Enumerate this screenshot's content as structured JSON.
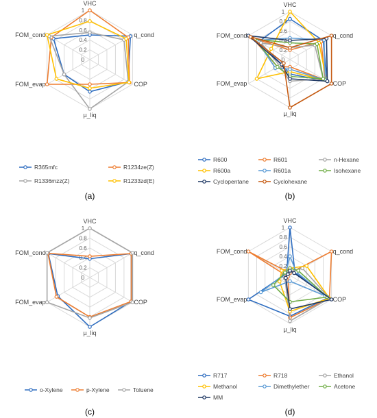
{
  "chart_data": [
    {
      "type": "radar",
      "panel_label": "(a)",
      "axes": [
        "VHC",
        "q_cond",
        "COP",
        "µ_liq",
        "FOM_evap",
        "FOM_cond"
      ],
      "tick_labels": [
        "0",
        "0.2",
        "0.4",
        "0.6",
        "0.8",
        "1"
      ],
      "range": [
        0,
        1
      ],
      "legend_position": "bottom",
      "series": [
        {
          "name": "R365mfc",
          "color": "#2e6dc0",
          "values": [
            0.5,
            0.95,
            0.9,
            0.65,
            0.6,
            0.85
          ]
        },
        {
          "name": "R1234ze(Z)",
          "color": "#ed7d31",
          "values": [
            1.0,
            0.9,
            0.93,
            0.5,
            1.0,
            0.9
          ]
        },
        {
          "name": "R1336mzz(Z)",
          "color": "#a5a5a5",
          "values": [
            0.55,
            0.8,
            0.9,
            1.0,
            0.6,
            0.95
          ]
        },
        {
          "name": "R1233zd(E)",
          "color": "#ffc000",
          "values": [
            0.78,
            0.85,
            0.92,
            0.58,
            0.78,
            1.0
          ]
        }
      ]
    },
    {
      "type": "radar",
      "panel_label": "(b)",
      "axes": [
        "VHC",
        "q_cond",
        "COP",
        "µ_liq",
        "FOM_evap",
        "FOM_cond"
      ],
      "tick_labels": [
        "0",
        "0.2",
        "0.4",
        "0.6",
        "0.8",
        "1"
      ],
      "range": [
        0,
        1
      ],
      "legend_position": "bottom",
      "series": [
        {
          "name": "R600",
          "color": "#2e6dc0",
          "values": [
            0.85,
            0.8,
            0.9,
            0.3,
            0.2,
            0.75
          ]
        },
        {
          "name": "R601",
          "color": "#ed7d31",
          "values": [
            0.2,
            0.75,
            0.85,
            0.15,
            0.3,
            0.9
          ]
        },
        {
          "name": "n-Hexane",
          "color": "#a5a5a5",
          "values": [
            0.25,
            0.6,
            0.8,
            0.45,
            0.25,
            0.7
          ]
        },
        {
          "name": "R600a",
          "color": "#ffc000",
          "values": [
            1.0,
            0.7,
            0.88,
            0.25,
            0.8,
            0.45
          ]
        },
        {
          "name": "R601a",
          "color": "#5b9bd5",
          "values": [
            0.45,
            0.82,
            0.85,
            0.2,
            0.35,
            0.8
          ]
        },
        {
          "name": "Isohexane",
          "color": "#70ad47",
          "values": [
            0.35,
            0.65,
            0.8,
            0.35,
            0.3,
            0.85
          ]
        },
        {
          "name": "Cyclopentane",
          "color": "#1f3864",
          "values": [
            0.4,
            0.88,
            0.9,
            0.4,
            0.2,
            1.0
          ]
        },
        {
          "name": "Cyclohexane",
          "color": "#c55a11",
          "values": [
            0.25,
            1.0,
            1.0,
            1.0,
            0.15,
            0.95
          ]
        }
      ]
    },
    {
      "type": "radar",
      "panel_label": "(c)",
      "axes": [
        "VHC",
        "q_cond",
        "COP",
        "µ_liq",
        "FOM_evap",
        "FOM_cond"
      ],
      "tick_labels": [
        "0",
        "0.2",
        "0.4",
        "0.6",
        "0.8",
        "1"
      ],
      "range": [
        0,
        1
      ],
      "legend_position": "bottom",
      "series": [
        {
          "name": "o-Xylene",
          "color": "#2e6dc0",
          "values": [
            0.38,
            0.97,
            0.97,
            1.0,
            0.75,
            0.97
          ]
        },
        {
          "name": "p-Xylene",
          "color": "#ed7d31",
          "values": [
            0.43,
            0.97,
            0.97,
            0.8,
            0.78,
            0.98
          ]
        },
        {
          "name": "Toluene",
          "color": "#a5a5a5",
          "values": [
            1.0,
            1.0,
            1.0,
            0.82,
            1.0,
            1.0
          ]
        }
      ]
    },
    {
      "type": "radar",
      "panel_label": "(d)",
      "axes": [
        "VHC",
        "q_cond",
        "COP",
        "µ_liq",
        "FOM_evap",
        "FOM_cond"
      ],
      "tick_labels": [
        "0",
        "0.2",
        "0.4",
        "0.6",
        "0.8",
        "1"
      ],
      "range": [
        0,
        1
      ],
      "legend_position": "bottom",
      "series": [
        {
          "name": "R717",
          "color": "#2e6dc0",
          "values": [
            1.0,
            0.12,
            0.92,
            0.85,
            1.0,
            0.08
          ]
        },
        {
          "name": "R718",
          "color": "#ed7d31",
          "values": [
            0.05,
            1.0,
            0.95,
            0.88,
            0.05,
            1.0
          ]
        },
        {
          "name": "Ethanol",
          "color": "#a5a5a5",
          "values": [
            0.08,
            0.3,
            0.95,
            0.95,
            0.12,
            0.15
          ]
        },
        {
          "name": "Methanol",
          "color": "#ffc000",
          "values": [
            0.15,
            0.4,
            0.95,
            0.75,
            0.25,
            0.2
          ]
        },
        {
          "name": "Dimethylether",
          "color": "#5b9bd5",
          "values": [
            0.4,
            0.15,
            0.85,
            0.12,
            0.7,
            0.1
          ]
        },
        {
          "name": "Acetone",
          "color": "#70ad47",
          "values": [
            0.15,
            0.2,
            0.9,
            0.55,
            0.4,
            0.12
          ]
        },
        {
          "name": "MM",
          "color": "#1f3864",
          "values": [
            0.1,
            0.1,
            1.0,
            0.7,
            0.1,
            0.05
          ]
        }
      ]
    }
  ]
}
